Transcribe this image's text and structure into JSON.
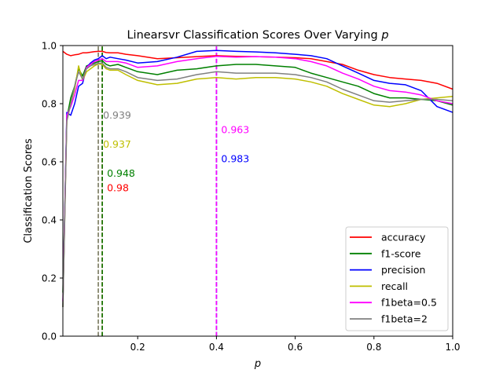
{
  "chart_data": {
    "type": "line",
    "title_prefix": "Linearsvr Classification Scores Over Varying ",
    "title_var": "p",
    "xlabel": "p",
    "ylabel": "Classification Scores",
    "xlim": [
      0.01,
      1.0
    ],
    "ylim": [
      0.0,
      1.0
    ],
    "xticks": [
      {
        "v": 0.2,
        "label": "0.2"
      },
      {
        "v": 0.4,
        "label": "0.4"
      },
      {
        "v": 0.6,
        "label": "0.6"
      },
      {
        "v": 0.8,
        "label": "0.8"
      },
      {
        "v": 1.0,
        "label": "1.0"
      }
    ],
    "yticks": [
      {
        "v": 0.0,
        "label": "0.0"
      },
      {
        "v": 0.2,
        "label": "0.2"
      },
      {
        "v": 0.4,
        "label": "0.4"
      },
      {
        "v": 0.6,
        "label": "0.6"
      },
      {
        "v": 0.8,
        "label": "0.8"
      },
      {
        "v": 1.0,
        "label": "1.0"
      }
    ],
    "grid": false,
    "legend_position": "lower-right",
    "series": [
      {
        "name": "accuracy",
        "color": "#ff0000",
        "x": [
          0.01,
          0.02,
          0.03,
          0.04,
          0.05,
          0.06,
          0.07,
          0.08,
          0.09,
          0.1,
          0.11,
          0.12,
          0.13,
          0.15,
          0.17,
          0.2,
          0.25,
          0.3,
          0.35,
          0.4,
          0.45,
          0.5,
          0.55,
          0.6,
          0.64,
          0.68,
          0.72,
          0.76,
          0.8,
          0.84,
          0.88,
          0.92,
          0.96,
          1.0
        ],
        "y": [
          0.98,
          0.97,
          0.965,
          0.968,
          0.97,
          0.975,
          0.975,
          0.977,
          0.979,
          0.98,
          0.98,
          0.976,
          0.975,
          0.975,
          0.97,
          0.965,
          0.955,
          0.958,
          0.962,
          0.965,
          0.963,
          0.962,
          0.96,
          0.958,
          0.955,
          0.945,
          0.935,
          0.915,
          0.9,
          0.89,
          0.885,
          0.88,
          0.87,
          0.85
        ]
      },
      {
        "name": "f1-score",
        "color": "#008000",
        "x": [
          0.01,
          0.02,
          0.03,
          0.04,
          0.05,
          0.06,
          0.07,
          0.08,
          0.09,
          0.1,
          0.11,
          0.12,
          0.13,
          0.15,
          0.17,
          0.2,
          0.25,
          0.3,
          0.35,
          0.4,
          0.45,
          0.5,
          0.55,
          0.6,
          0.64,
          0.68,
          0.72,
          0.76,
          0.8,
          0.84,
          0.88,
          0.92,
          0.96,
          1.0
        ],
        "y": [
          0.15,
          0.75,
          0.82,
          0.86,
          0.92,
          0.895,
          0.93,
          0.935,
          0.94,
          0.945,
          0.948,
          0.935,
          0.93,
          0.935,
          0.925,
          0.91,
          0.9,
          0.915,
          0.92,
          0.93,
          0.935,
          0.935,
          0.93,
          0.925,
          0.905,
          0.89,
          0.875,
          0.86,
          0.835,
          0.82,
          0.82,
          0.815,
          0.81,
          0.795
        ]
      },
      {
        "name": "precision",
        "color": "#0000ff",
        "x": [
          0.01,
          0.02,
          0.03,
          0.04,
          0.05,
          0.06,
          0.07,
          0.08,
          0.09,
          0.1,
          0.11,
          0.12,
          0.13,
          0.15,
          0.17,
          0.2,
          0.25,
          0.3,
          0.35,
          0.4,
          0.45,
          0.5,
          0.55,
          0.6,
          0.64,
          0.68,
          0.72,
          0.76,
          0.8,
          0.84,
          0.88,
          0.92,
          0.96,
          1.0
        ],
        "y": [
          0.1,
          0.77,
          0.76,
          0.8,
          0.86,
          0.87,
          0.925,
          0.94,
          0.95,
          0.955,
          0.965,
          0.955,
          0.96,
          0.955,
          0.95,
          0.94,
          0.945,
          0.96,
          0.98,
          0.983,
          0.98,
          0.978,
          0.975,
          0.97,
          0.965,
          0.955,
          0.93,
          0.905,
          0.88,
          0.87,
          0.865,
          0.845,
          0.79,
          0.77
        ]
      },
      {
        "name": "recall",
        "color": "#bfbf00",
        "x": [
          0.01,
          0.02,
          0.03,
          0.04,
          0.05,
          0.06,
          0.07,
          0.08,
          0.09,
          0.1,
          0.11,
          0.12,
          0.13,
          0.15,
          0.17,
          0.2,
          0.25,
          0.3,
          0.35,
          0.4,
          0.45,
          0.5,
          0.55,
          0.6,
          0.64,
          0.68,
          0.72,
          0.76,
          0.8,
          0.84,
          0.88,
          0.92,
          0.96,
          1.0
        ],
        "y": [
          0.1,
          0.74,
          0.8,
          0.85,
          0.93,
          0.88,
          0.91,
          0.92,
          0.93,
          0.937,
          0.935,
          0.92,
          0.915,
          0.915,
          0.9,
          0.88,
          0.865,
          0.87,
          0.885,
          0.89,
          0.885,
          0.89,
          0.89,
          0.885,
          0.875,
          0.86,
          0.835,
          0.815,
          0.795,
          0.79,
          0.8,
          0.815,
          0.82,
          0.825
        ]
      },
      {
        "name": "f1beta=0.5",
        "color": "#ff00ff",
        "x": [
          0.01,
          0.02,
          0.03,
          0.04,
          0.05,
          0.06,
          0.07,
          0.08,
          0.09,
          0.1,
          0.11,
          0.12,
          0.13,
          0.15,
          0.17,
          0.2,
          0.25,
          0.3,
          0.35,
          0.4,
          0.45,
          0.5,
          0.55,
          0.6,
          0.64,
          0.68,
          0.72,
          0.76,
          0.8,
          0.84,
          0.88,
          0.92,
          0.96,
          1.0
        ],
        "y": [
          0.12,
          0.76,
          0.79,
          0.83,
          0.88,
          0.88,
          0.925,
          0.935,
          0.945,
          0.95,
          0.955,
          0.945,
          0.945,
          0.945,
          0.94,
          0.925,
          0.93,
          0.945,
          0.955,
          0.963,
          0.96,
          0.962,
          0.96,
          0.955,
          0.945,
          0.93,
          0.905,
          0.885,
          0.86,
          0.845,
          0.84,
          0.83,
          0.81,
          0.8
        ]
      },
      {
        "name": "f1beta=2",
        "color": "#808080",
        "x": [
          0.01,
          0.02,
          0.03,
          0.04,
          0.05,
          0.06,
          0.07,
          0.08,
          0.09,
          0.1,
          0.11,
          0.12,
          0.13,
          0.15,
          0.17,
          0.2,
          0.25,
          0.3,
          0.35,
          0.4,
          0.45,
          0.5,
          0.55,
          0.6,
          0.64,
          0.68,
          0.72,
          0.76,
          0.8,
          0.84,
          0.88,
          0.92,
          0.96,
          1.0
        ],
        "y": [
          0.1,
          0.74,
          0.8,
          0.86,
          0.91,
          0.885,
          0.92,
          0.93,
          0.935,
          0.939,
          0.94,
          0.925,
          0.92,
          0.92,
          0.91,
          0.89,
          0.88,
          0.885,
          0.9,
          0.91,
          0.905,
          0.905,
          0.905,
          0.9,
          0.89,
          0.875,
          0.85,
          0.83,
          0.81,
          0.805,
          0.81,
          0.815,
          0.815,
          0.81
        ]
      }
    ],
    "vlines": [
      {
        "name": "accuracy",
        "x": 0.11,
        "color": "#ff0000"
      },
      {
        "name": "f1-score",
        "x": 0.11,
        "color": "#008000"
      },
      {
        "name": "precision",
        "x": 0.4,
        "color": "#0000ff"
      },
      {
        "name": "recall",
        "x": 0.1,
        "color": "#bfbf00"
      },
      {
        "name": "f1beta=0.5",
        "x": 0.4,
        "color": "#ff00ff"
      },
      {
        "name": "f1beta=2",
        "x": 0.1,
        "color": "#808080"
      }
    ],
    "annotations": [
      {
        "text": "0.939",
        "x": 0.1,
        "y": 0.76,
        "color": "#808080"
      },
      {
        "text": "0.937",
        "x": 0.1,
        "y": 0.66,
        "color": "#bfbf00"
      },
      {
        "text": "0.948",
        "x": 0.11,
        "y": 0.56,
        "color": "#008000"
      },
      {
        "text": "0.98",
        "x": 0.11,
        "y": 0.51,
        "color": "#ff0000"
      },
      {
        "text": "0.963",
        "x": 0.4,
        "y": 0.71,
        "color": "#ff00ff"
      },
      {
        "text": "0.983",
        "x": 0.4,
        "y": 0.61,
        "color": "#0000ff"
      }
    ]
  }
}
